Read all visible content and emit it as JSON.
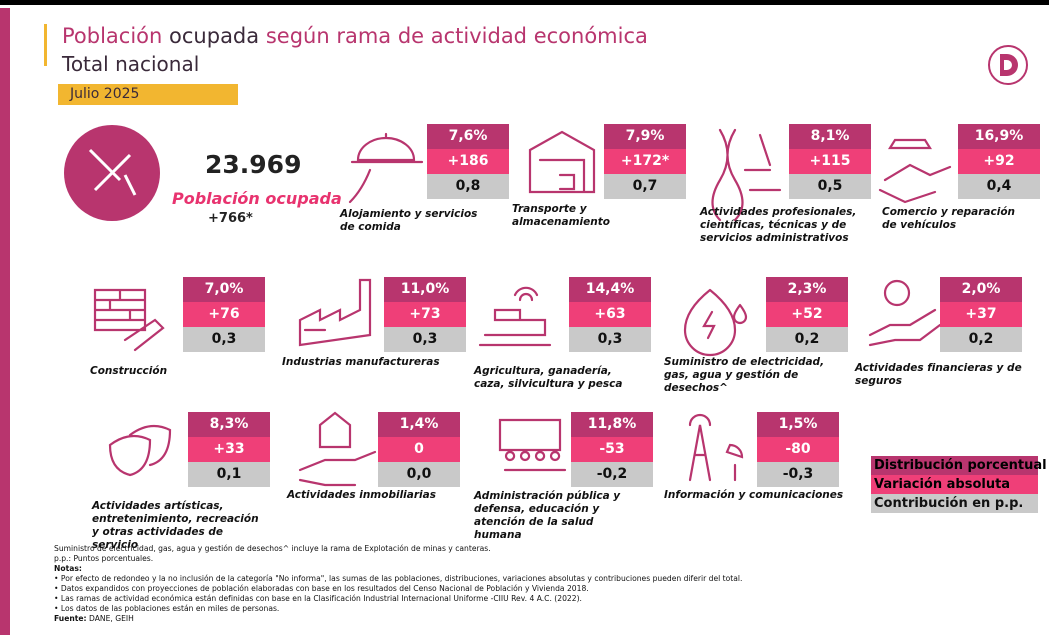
{
  "header": {
    "title_parts": [
      "Población",
      "ocupada",
      "según rama de actividad económica"
    ],
    "subtitle": "Total nacional",
    "period": "Julio 2025"
  },
  "total": {
    "value": "23.969",
    "label": "Población ocupada",
    "variation": "+766*"
  },
  "sectors": [
    {
      "name": "Alojamiento y servicios de comida",
      "share": "7,6%",
      "variation": "+186",
      "contribution": "0,8"
    },
    {
      "name": "Transporte y almacenamiento",
      "share": "7,9%",
      "variation": "+172*",
      "contribution": "0,7"
    },
    {
      "name": "Actividades profesionales, científicas, técnicas y de servicios administrativos",
      "share": "8,1%",
      "variation": "+115",
      "contribution": "0,5"
    },
    {
      "name": "Comercio y reparación de vehículos",
      "share": "16,9%",
      "variation": "+92",
      "contribution": "0,4"
    },
    {
      "name": "Construcción",
      "share": "7,0%",
      "variation": "+76",
      "contribution": "0,3"
    },
    {
      "name": "Industrias manufactureras",
      "share": "11,0%",
      "variation": "+73",
      "contribution": "0,3"
    },
    {
      "name": "Agricultura, ganadería, caza, silvicultura y pesca",
      "share": "14,4%",
      "variation": "+63",
      "contribution": "0,3"
    },
    {
      "name": "Suministro de electricidad, gas, agua y gestión de desechos^",
      "share": "2,3%",
      "variation": "+52",
      "contribution": "0,2"
    },
    {
      "name": "Actividades financieras y de seguros",
      "share": "2,0%",
      "variation": "+37",
      "contribution": "0,2"
    },
    {
      "name": "Actividades artísticas, entretenimiento, recreación y otras actividades de servicio",
      "share": "8,3%",
      "variation": "+33",
      "contribution": "0,1"
    },
    {
      "name": "Actividades inmobiliarias",
      "share": "1,4%",
      "variation": "0",
      "contribution": "0,0"
    },
    {
      "name": "Administración pública y defensa, educación y atención de la salud humana",
      "share": "11,8%",
      "variation": "-53",
      "contribution": "-0,2"
    },
    {
      "name": "Información y comunicaciones",
      "share": "1,5%",
      "variation": "-80",
      "contribution": "-0,3"
    }
  ],
  "legend": [
    "Distribución porcentual",
    "Variación absoluta",
    "Contribución en p.p."
  ],
  "notes": {
    "footnote": "Suministro de electricidad, gas, agua y gestión de desechos^ incluye la rama de Explotación de minas y canteras.",
    "abbreviation": "p.p.: Puntos porcentuales.",
    "notes_title": "Notas:",
    "items": [
      "• Por efecto de redondeo y la no inclusión de la categoría \"No informa\", las sumas de las poblaciones, distribuciones, variaciones absolutas y contribuciones pueden diferir del total.",
      "• Datos expandidos con proyecciones de población elaboradas con base en los resultados del Censo Nacional de Población y Vivienda 2018.",
      "• Las ramas de actividad económica están definidas con base en la Clasificación Industrial Internacional Uniforme -CIIU Rev. 4 A.C. (2022).",
      "• Los datos de las poblaciones están en miles de personas."
    ],
    "source_label": "Fuente:",
    "source": "DANE, GEIH"
  }
}
